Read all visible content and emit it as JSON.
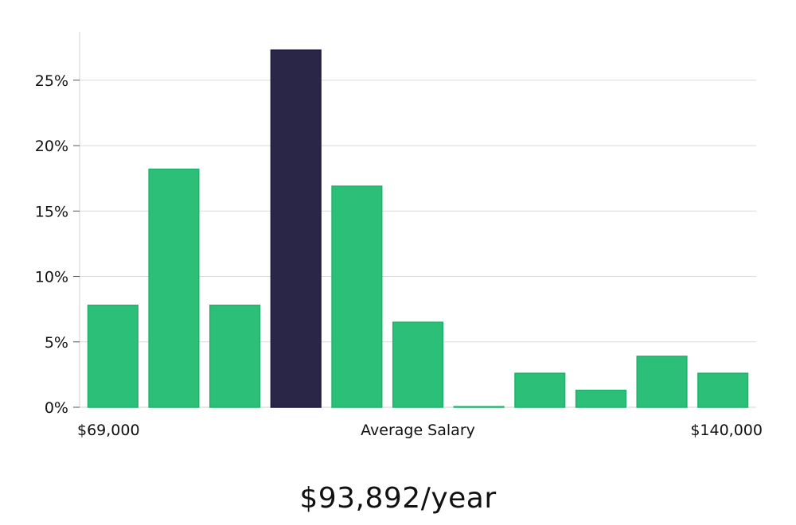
{
  "chart_data": {
    "type": "bar",
    "title": "",
    "xlabel": "Average Salary",
    "ylabel": "",
    "x_range_labels": {
      "min": "$69,000",
      "max": "$140,000"
    },
    "yticks": [
      0,
      5,
      10,
      15,
      20,
      25
    ],
    "ytick_labels": [
      "0%",
      "5%",
      "10%",
      "15%",
      "20%",
      "25%"
    ],
    "ylim": [
      0,
      28.7
    ],
    "grid": true,
    "values": [
      7.8,
      18.2,
      7.8,
      27.3,
      16.9,
      6.5,
      0.05,
      2.6,
      1.3,
      3.9,
      2.6
    ],
    "highlight_index": 3,
    "colors": {
      "bar": "#2bbf78",
      "bar_edge": "#22b06c",
      "highlight": "#292648",
      "highlight_edge": "#1c1a3a",
      "grid": "#d9d9d9",
      "axis": "#d0d0d0",
      "text": "#111111"
    }
  },
  "summary": {
    "average_salary": "$93,892/year"
  }
}
